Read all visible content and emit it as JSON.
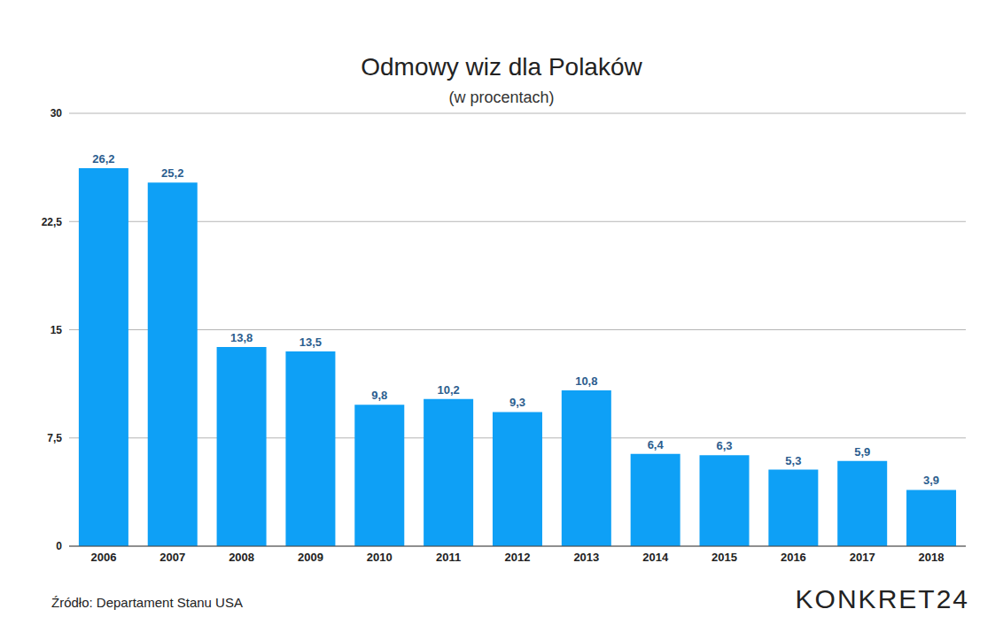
{
  "chart_data": {
    "type": "bar",
    "title": "Odmowy wiz dla Polaków",
    "subtitle": "(w procentach)",
    "categories": [
      "2006",
      "2007",
      "2008",
      "2009",
      "2010",
      "2011",
      "2012",
      "2013",
      "2014",
      "2015",
      "2016",
      "2017",
      "2018"
    ],
    "values": [
      26.2,
      25.2,
      13.8,
      13.5,
      9.8,
      10.2,
      9.3,
      10.8,
      6.4,
      6.3,
      5.3,
      5.9,
      3.9
    ],
    "value_labels": [
      "26,2",
      "25,2",
      "13,8",
      "13,5",
      "9,8",
      "10,2",
      "9,3",
      "10,8",
      "6,4",
      "6,3",
      "5,3",
      "5,9",
      "3,9"
    ],
    "color": "#0ea0f6",
    "ylim": [
      0,
      30
    ],
    "yticks": [
      0,
      {
        "value": 7.5,
        "label": "7,5"
      },
      15,
      {
        "value": 22.5,
        "label": "22,5"
      },
      30
    ],
    "grid": true,
    "data_labels": true,
    "source": "Źródło: Departament Stanu USA",
    "brand": "KONKRET24"
  }
}
